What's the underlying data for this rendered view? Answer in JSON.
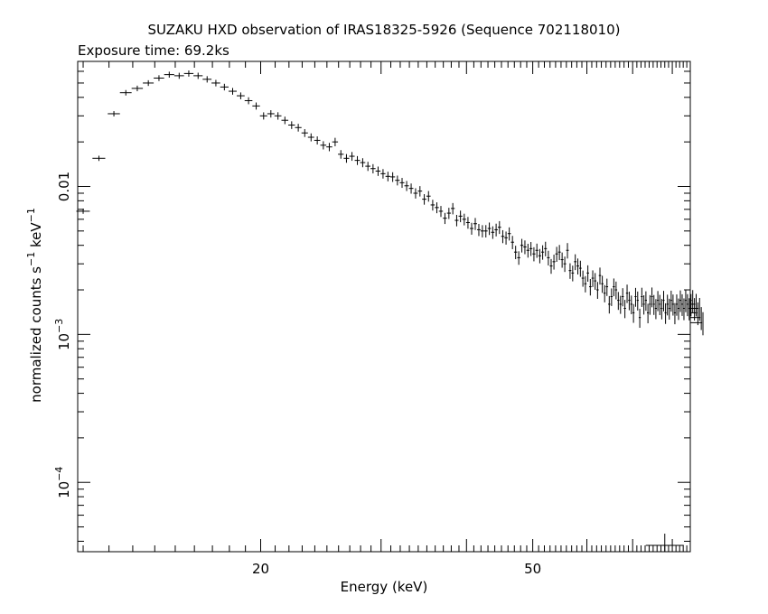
{
  "chart_data": {
    "type": "scatter",
    "title": "SUZAKU HXD observation of IRAS18325-5926 (Sequence 702118010)",
    "subtitle": "Exposure time: 69.2ks",
    "xlabel": "Energy (keV)",
    "ylabel": {
      "base": "normalized counts s",
      "exp1": "−1",
      "mid": " keV",
      "exp2": "−1"
    },
    "x_scale": "log",
    "y_scale": "log",
    "xlim": [
      10.8,
      85
    ],
    "ylim": [
      3.4e-05,
      0.07
    ],
    "x_ticks": [
      {
        "value": 20,
        "label": "20"
      },
      {
        "value": 50,
        "label": "50"
      }
    ],
    "y_ticks": [
      {
        "value": 0.01,
        "label": "0.01",
        "base": "",
        "exp": ""
      },
      {
        "value": 0.001,
        "label": "",
        "base": "10",
        "exp": "−3"
      },
      {
        "value": 0.0001,
        "label": "",
        "base": "10",
        "exp": "−4"
      }
    ],
    "corner_marker": {
      "x": 78,
      "y": 3.75e-05
    },
    "points": [
      [
        11.0,
        0.0068
      ],
      [
        11.6,
        0.0155
      ],
      [
        12.2,
        0.031
      ],
      [
        12.7,
        0.043
      ],
      [
        13.2,
        0.046
      ],
      [
        13.7,
        0.05
      ],
      [
        14.2,
        0.054
      ],
      [
        14.7,
        0.057
      ],
      [
        15.2,
        0.056
      ],
      [
        15.7,
        0.058
      ],
      [
        16.2,
        0.056
      ],
      [
        16.7,
        0.053
      ],
      [
        17.2,
        0.05
      ],
      [
        17.7,
        0.047
      ],
      [
        18.2,
        0.044
      ],
      [
        18.7,
        0.041
      ],
      [
        19.2,
        0.038
      ],
      [
        19.7,
        0.035
      ],
      [
        20.2,
        0.03
      ],
      [
        20.7,
        0.031
      ],
      [
        21.2,
        0.03
      ],
      [
        21.7,
        0.028
      ],
      [
        22.2,
        0.026
      ],
      [
        22.7,
        0.025
      ],
      [
        23.2,
        0.023
      ],
      [
        23.7,
        0.0215
      ],
      [
        24.2,
        0.0205
      ],
      [
        24.7,
        0.019
      ],
      [
        25.2,
        0.0185
      ],
      [
        25.7,
        0.02
      ],
      [
        26.2,
        0.0165
      ],
      [
        26.7,
        0.0155
      ],
      [
        27.2,
        0.016
      ],
      [
        27.7,
        0.015
      ],
      [
        28.2,
        0.0145
      ],
      [
        28.7,
        0.0137
      ],
      [
        29.2,
        0.0132
      ],
      [
        29.7,
        0.0127
      ],
      [
        30.2,
        0.0122
      ],
      [
        30.7,
        0.0117
      ],
      [
        31.2,
        0.0116
      ],
      [
        31.7,
        0.011
      ],
      [
        32.2,
        0.0106
      ],
      [
        32.7,
        0.0101
      ],
      [
        33.2,
        0.0097
      ],
      [
        33.7,
        0.009
      ],
      [
        34.2,
        0.0093
      ],
      [
        34.7,
        0.0082
      ],
      [
        35.2,
        0.0086
      ],
      [
        35.7,
        0.0075
      ],
      [
        36.2,
        0.0072
      ],
      [
        36.7,
        0.0068
      ],
      [
        37.2,
        0.0061
      ],
      [
        37.7,
        0.0066
      ],
      [
        38.2,
        0.0071
      ],
      [
        38.7,
        0.0059
      ],
      [
        39.2,
        0.0063
      ],
      [
        39.7,
        0.006
      ],
      [
        40.2,
        0.0057
      ],
      [
        40.7,
        0.0052
      ],
      [
        41.2,
        0.0056
      ],
      [
        41.7,
        0.0051
      ],
      [
        42.2,
        0.005
      ],
      [
        42.7,
        0.005
      ],
      [
        43.2,
        0.0052
      ],
      [
        43.7,
        0.0049
      ],
      [
        44.2,
        0.0051
      ],
      [
        44.7,
        0.0053
      ],
      [
        45.2,
        0.0046
      ],
      [
        45.7,
        0.0045
      ],
      [
        46.2,
        0.0048
      ],
      [
        46.7,
        0.0042
      ],
      [
        47.2,
        0.0036
      ],
      [
        47.7,
        0.0033
      ],
      [
        48.2,
        0.004
      ],
      [
        48.7,
        0.0039
      ],
      [
        49.2,
        0.0037
      ],
      [
        49.7,
        0.0038
      ],
      [
        50.2,
        0.0035
      ],
      [
        50.7,
        0.0037
      ],
      [
        51.2,
        0.0034
      ],
      [
        51.7,
        0.0036
      ],
      [
        52.2,
        0.0038
      ],
      [
        52.7,
        0.0033
      ],
      [
        53.2,
        0.0029
      ],
      [
        53.7,
        0.0031
      ],
      [
        54.2,
        0.0035
      ],
      [
        54.7,
        0.0036
      ],
      [
        55.2,
        0.0032
      ],
      [
        55.7,
        0.003
      ],
      [
        56.2,
        0.0037
      ],
      [
        56.7,
        0.0027
      ],
      [
        57.2,
        0.0026
      ],
      [
        57.7,
        0.0031
      ],
      [
        58.2,
        0.0029
      ],
      [
        58.7,
        0.0028
      ],
      [
        59.2,
        0.0024
      ],
      [
        59.7,
        0.0022
      ],
      [
        60.2,
        0.0026
      ],
      [
        60.7,
        0.0021
      ],
      [
        61.2,
        0.0024
      ],
      [
        61.7,
        0.0023
      ],
      [
        62.2,
        0.002
      ],
      [
        62.7,
        0.0025
      ],
      [
        63.2,
        0.0022
      ],
      [
        63.7,
        0.0019
      ],
      [
        64.2,
        0.0021
      ],
      [
        64.7,
        0.0016
      ],
      [
        65.2,
        0.0018
      ],
      [
        65.7,
        0.0021
      ],
      [
        66.2,
        0.002
      ],
      [
        66.7,
        0.0017
      ],
      [
        67.2,
        0.0016
      ],
      [
        67.7,
        0.0018
      ],
      [
        68.2,
        0.0015
      ],
      [
        68.7,
        0.0019
      ],
      [
        69.2,
        0.0017
      ],
      [
        69.7,
        0.0016
      ],
      [
        70.2,
        0.0014
      ],
      [
        70.7,
        0.0018
      ],
      [
        71.2,
        0.0017
      ],
      [
        71.7,
        0.0013
      ],
      [
        72.2,
        0.0018
      ],
      [
        72.7,
        0.0016
      ],
      [
        73.2,
        0.0017
      ],
      [
        73.7,
        0.0014
      ],
      [
        74.2,
        0.0016
      ],
      [
        74.7,
        0.0018
      ],
      [
        75.2,
        0.0016
      ],
      [
        75.7,
        0.0015
      ],
      [
        76.2,
        0.0017
      ],
      [
        76.7,
        0.0016
      ],
      [
        77.2,
        0.0015
      ],
      [
        77.7,
        0.0017
      ],
      [
        78.2,
        0.0014
      ],
      [
        78.7,
        0.0016
      ],
      [
        79.2,
        0.0015
      ],
      [
        79.7,
        0.0017
      ],
      [
        80.2,
        0.0016
      ],
      [
        80.7,
        0.0014
      ],
      [
        81.2,
        0.0016
      ],
      [
        81.7,
        0.0015
      ],
      [
        82.2,
        0.0017
      ],
      [
        82.7,
        0.0016
      ],
      [
        83.2,
        0.0015
      ],
      [
        83.7,
        0.0017
      ],
      [
        84.2,
        0.0016
      ],
      [
        84.7,
        0.0015
      ],
      [
        85.2,
        0.0016
      ],
      [
        85.7,
        0.0017
      ],
      [
        86.2,
        0.0015
      ],
      [
        86.7,
        0.0016
      ],
      [
        87.2,
        0.0014
      ],
      [
        87.7,
        0.0015
      ],
      [
        88.2,
        0.0013
      ],
      [
        88.7,
        0.0012
      ]
    ]
  }
}
